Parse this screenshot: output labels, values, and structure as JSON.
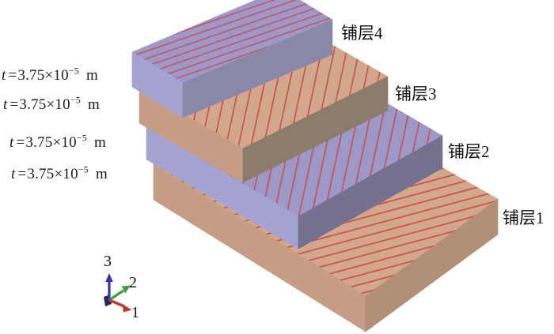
{
  "ply_labels": [
    {
      "text": "铺层4"
    },
    {
      "text": "铺层3"
    },
    {
      "text": "铺层2"
    },
    {
      "text": "铺层1"
    }
  ],
  "thickness_labels": [
    {
      "symbol": "t",
      "equals": "=",
      "mantissa": "3.75×10",
      "exponent": "−5",
      "unit": "m"
    },
    {
      "symbol": "t",
      "equals": "=",
      "mantissa": "3.75×10",
      "exponent": "−5",
      "unit": "m"
    },
    {
      "symbol": "t",
      "equals": "=",
      "mantissa": "3.75×10",
      "exponent": "−5",
      "unit": "m"
    },
    {
      "symbol": "t",
      "equals": "=",
      "mantissa": "3.75×10",
      "exponent": "−5",
      "unit": "m"
    }
  ],
  "axis_triad": {
    "axis_1": "1",
    "axis_2": "2",
    "axis_3": "3"
  },
  "colors": {
    "background": "#ffffff",
    "ply_blue_top": "#9b99c9",
    "ply_blue_side": "#a4a3d2",
    "ply_blue_front_upper": "#8a88a8",
    "ply_blue_front_lower": "#76718e",
    "ply_tan_top": "#d2a88c",
    "ply_tan_side": "#c69e86",
    "ply_tan_front_upper": "#8d7b6b",
    "ply_tan_front_lower": "#b28f77",
    "fiber_line": "#d14e4a",
    "axis_1_color": "#bf3a2b",
    "axis_2_color": "#3a9e3a",
    "axis_3_color": "#3434a4",
    "triad_knob": "#27275a"
  }
}
